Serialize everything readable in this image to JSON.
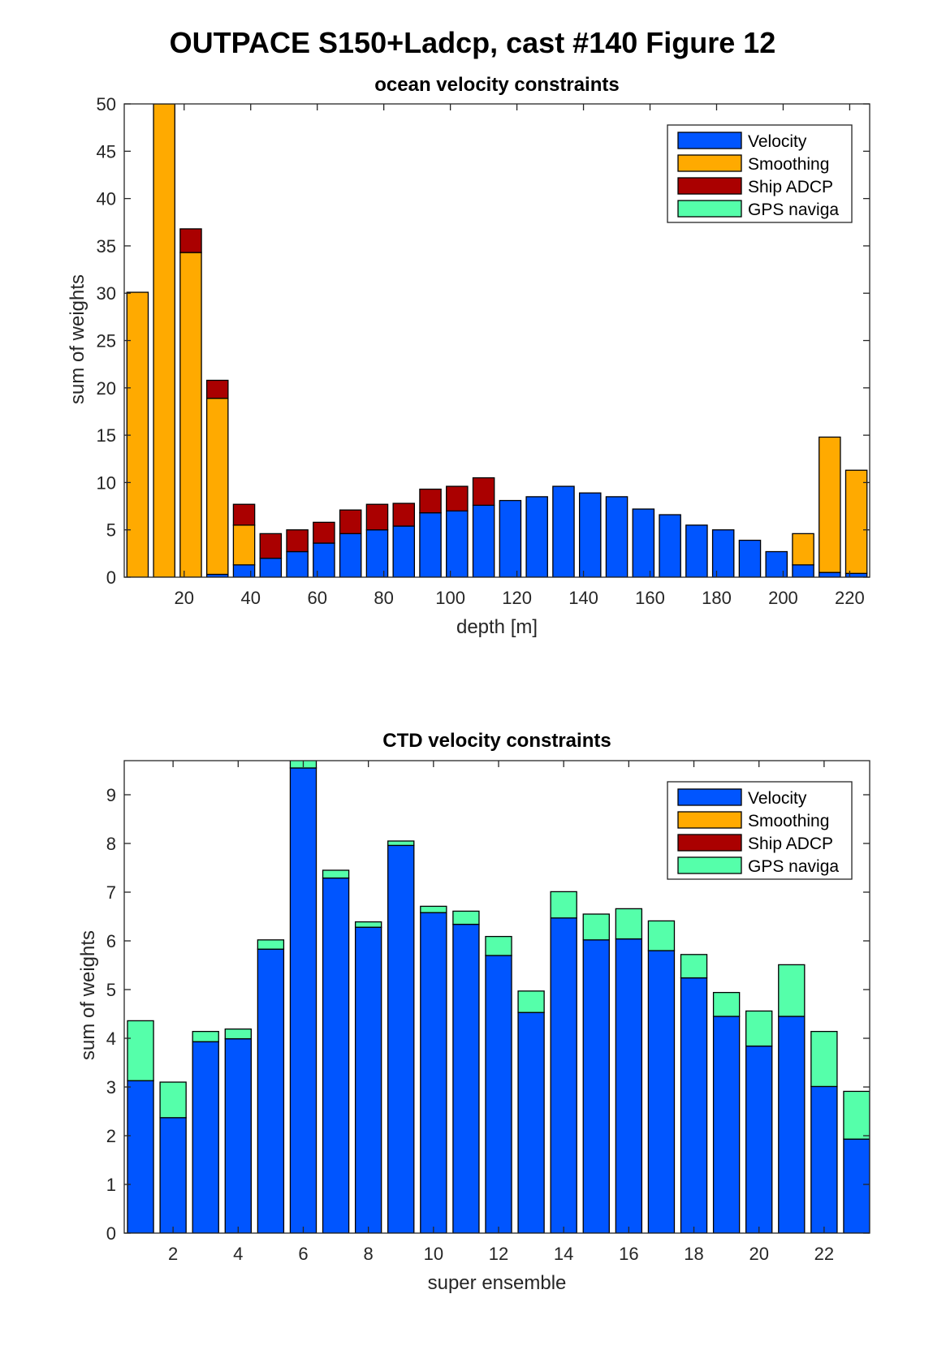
{
  "figure_title": "OUTPACE S150+Ladcp, cast #140  Figure 12",
  "legend_entries": [
    "Velocity",
    "Smoothing",
    "Ship ADCP",
    "GPS naviga"
  ],
  "colors": {
    "Velocity": "#0055ff",
    "Smoothing": "#ffaa00",
    "Ship ADCP": "#aa0000",
    "GPS naviga": "#55ffaa"
  },
  "chart_data": [
    {
      "type": "bar",
      "stacked": true,
      "title": "ocean velocity constraints",
      "xlabel": "depth [m]",
      "ylabel": "sum of weights",
      "xlim": [
        2,
        226
      ],
      "ylim": [
        0,
        50
      ],
      "bar_width": 6.4,
      "xticks": [
        20,
        40,
        60,
        80,
        100,
        120,
        140,
        160,
        180,
        200,
        220
      ],
      "yticks": [
        0,
        5,
        10,
        15,
        20,
        25,
        30,
        35,
        40,
        45,
        50
      ],
      "legend_position": "top-right",
      "x": [
        6,
        14,
        22,
        30,
        38,
        46,
        54,
        62,
        70,
        78,
        86,
        94,
        102,
        110,
        118,
        126,
        134,
        142,
        150,
        158,
        166,
        174,
        182,
        190,
        198,
        206,
        214,
        222
      ],
      "series": [
        {
          "name": "Velocity",
          "values": [
            0,
            0,
            0,
            0.3,
            1.3,
            2.0,
            2.7,
            3.6,
            4.6,
            5.0,
            5.4,
            6.8,
            7.0,
            7.6,
            8.1,
            8.5,
            9.6,
            8.9,
            8.5,
            7.2,
            6.6,
            5.5,
            5.0,
            3.9,
            2.7,
            1.3,
            0.5,
            0.4
          ]
        },
        {
          "name": "Smoothing",
          "values": [
            30.1,
            50.0,
            34.3,
            18.6,
            4.2,
            0,
            0,
            0,
            0,
            0,
            0,
            0,
            0,
            0,
            0,
            0,
            0,
            0,
            0,
            0,
            0,
            0,
            0,
            0,
            0,
            3.3,
            14.3,
            10.9
          ]
        },
        {
          "name": "Ship ADCP",
          "values": [
            0,
            0,
            2.5,
            1.9,
            2.2,
            2.6,
            2.3,
            2.2,
            2.5,
            2.7,
            2.4,
            2.5,
            2.6,
            2.9,
            0,
            0,
            0,
            0,
            0,
            0,
            0,
            0,
            0,
            0,
            0,
            0,
            0,
            0
          ]
        },
        {
          "name": "GPS naviga",
          "values": [
            0,
            0,
            0,
            0,
            0,
            0,
            0,
            0,
            0,
            0,
            0,
            0,
            0,
            0,
            0,
            0,
            0,
            0,
            0,
            0,
            0,
            0,
            0,
            0,
            0,
            0,
            0,
            0
          ]
        }
      ]
    },
    {
      "type": "bar",
      "stacked": true,
      "title": "CTD velocity constraints",
      "xlabel": "super ensemble",
      "ylabel": "sum of weights",
      "xlim": [
        0.5,
        23.4
      ],
      "ylim": [
        0,
        9.7
      ],
      "bar_width": 0.8,
      "xticks": [
        2,
        4,
        6,
        8,
        10,
        12,
        14,
        16,
        18,
        20,
        22
      ],
      "yticks": [
        0,
        1,
        2,
        3,
        4,
        5,
        6,
        7,
        8,
        9
      ],
      "legend_position": "top-right",
      "x": [
        1,
        2,
        3,
        4,
        5,
        6,
        7,
        8,
        9,
        10,
        11,
        12,
        13,
        14,
        15,
        16,
        17,
        18,
        19,
        20,
        21,
        22,
        23
      ],
      "series": [
        {
          "name": "Velocity",
          "values": [
            3.13,
            2.37,
            3.93,
            3.99,
            5.83,
            9.55,
            7.29,
            6.28,
            7.96,
            6.58,
            6.34,
            5.7,
            4.53,
            6.47,
            6.02,
            6.04,
            5.8,
            5.24,
            4.45,
            3.84,
            4.45,
            3.01,
            1.93
          ]
        },
        {
          "name": "Smoothing",
          "values": [
            0,
            0,
            0,
            0,
            0,
            0,
            0,
            0,
            0,
            0,
            0,
            0,
            0,
            0,
            0,
            0,
            0,
            0,
            0,
            0,
            0,
            0,
            0
          ]
        },
        {
          "name": "Ship ADCP",
          "values": [
            0,
            0,
            0,
            0,
            0,
            0,
            0,
            0,
            0,
            0,
            0,
            0,
            0,
            0,
            0,
            0,
            0,
            0,
            0,
            0,
            0,
            0,
            0
          ]
        },
        {
          "name": "GPS naviga",
          "values": [
            1.23,
            0.73,
            0.21,
            0.2,
            0.19,
            0.2,
            0.16,
            0.11,
            0.09,
            0.13,
            0.27,
            0.39,
            0.44,
            0.54,
            0.53,
            0.62,
            0.61,
            0.48,
            0.49,
            0.72,
            1.06,
            1.13,
            0.98
          ]
        }
      ]
    }
  ]
}
